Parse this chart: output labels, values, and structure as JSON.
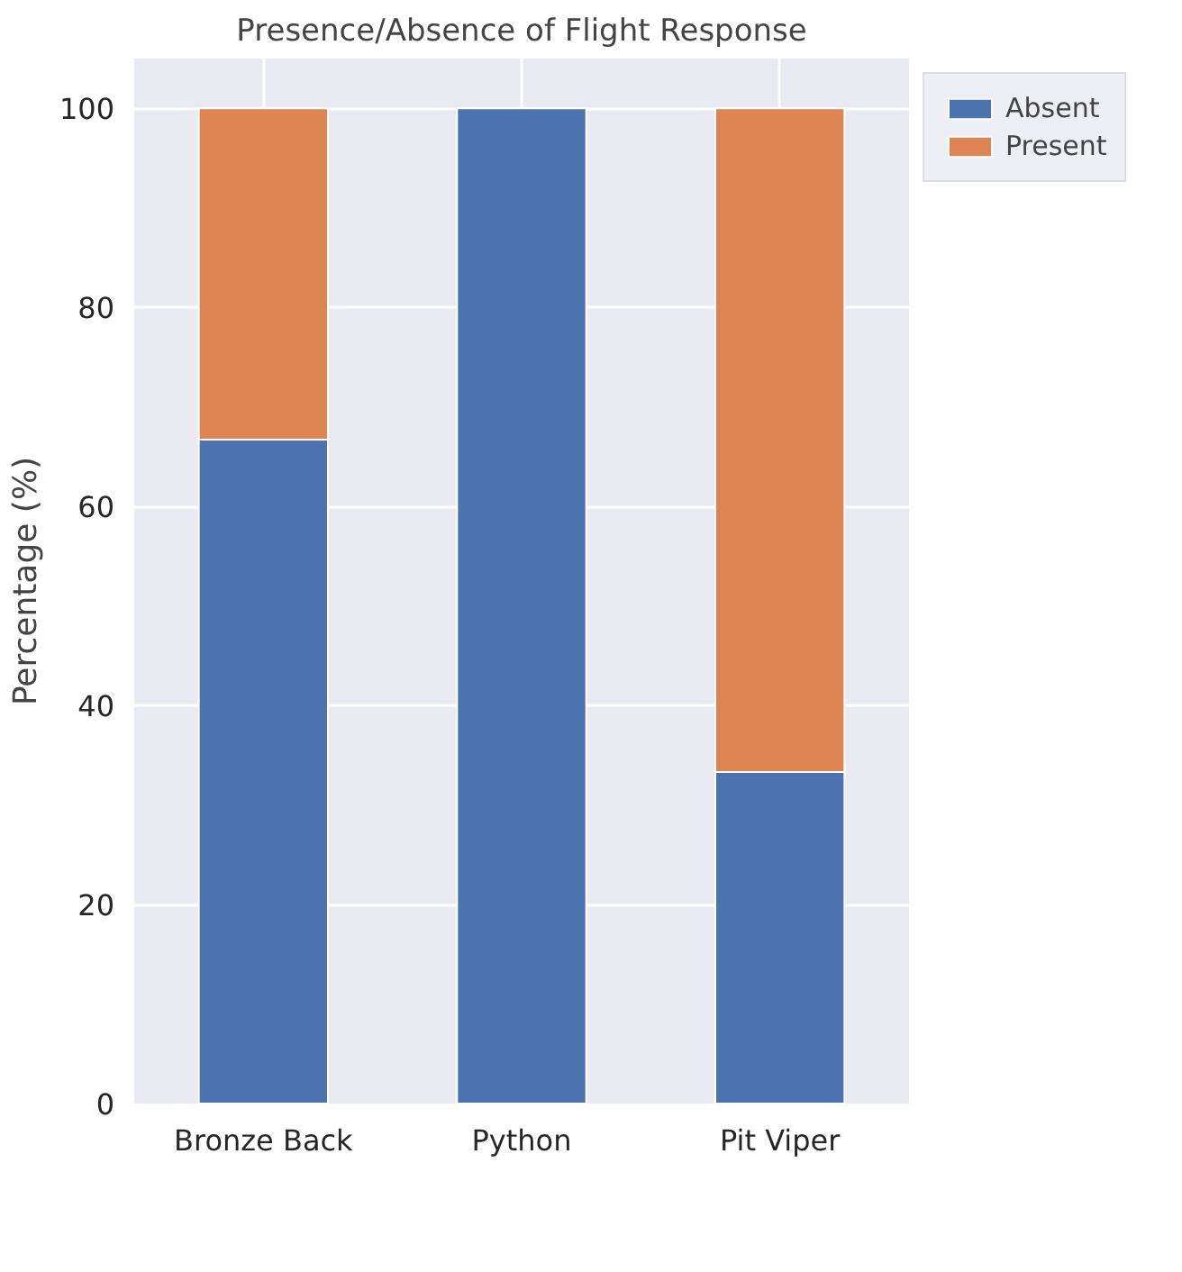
{
  "chart_data": {
    "type": "bar",
    "title": "Presence/Absence of Flight Response",
    "ylabel": "Percentage (%)",
    "categories": [
      "Bronze Back",
      "Python",
      "Pit Viper"
    ],
    "stacked": true,
    "series": [
      {
        "name": "Absent",
        "color": "#4c72b0",
        "values": [
          66.7,
          100,
          33.3
        ]
      },
      {
        "name": "Present",
        "color": "#dd8452",
        "values": [
          33.3,
          null,
          66.7
        ]
      }
    ],
    "ylim": [
      0,
      105
    ],
    "yticks": [
      0,
      20,
      40,
      60,
      80,
      100
    ],
    "grid": true,
    "legend": "right"
  }
}
